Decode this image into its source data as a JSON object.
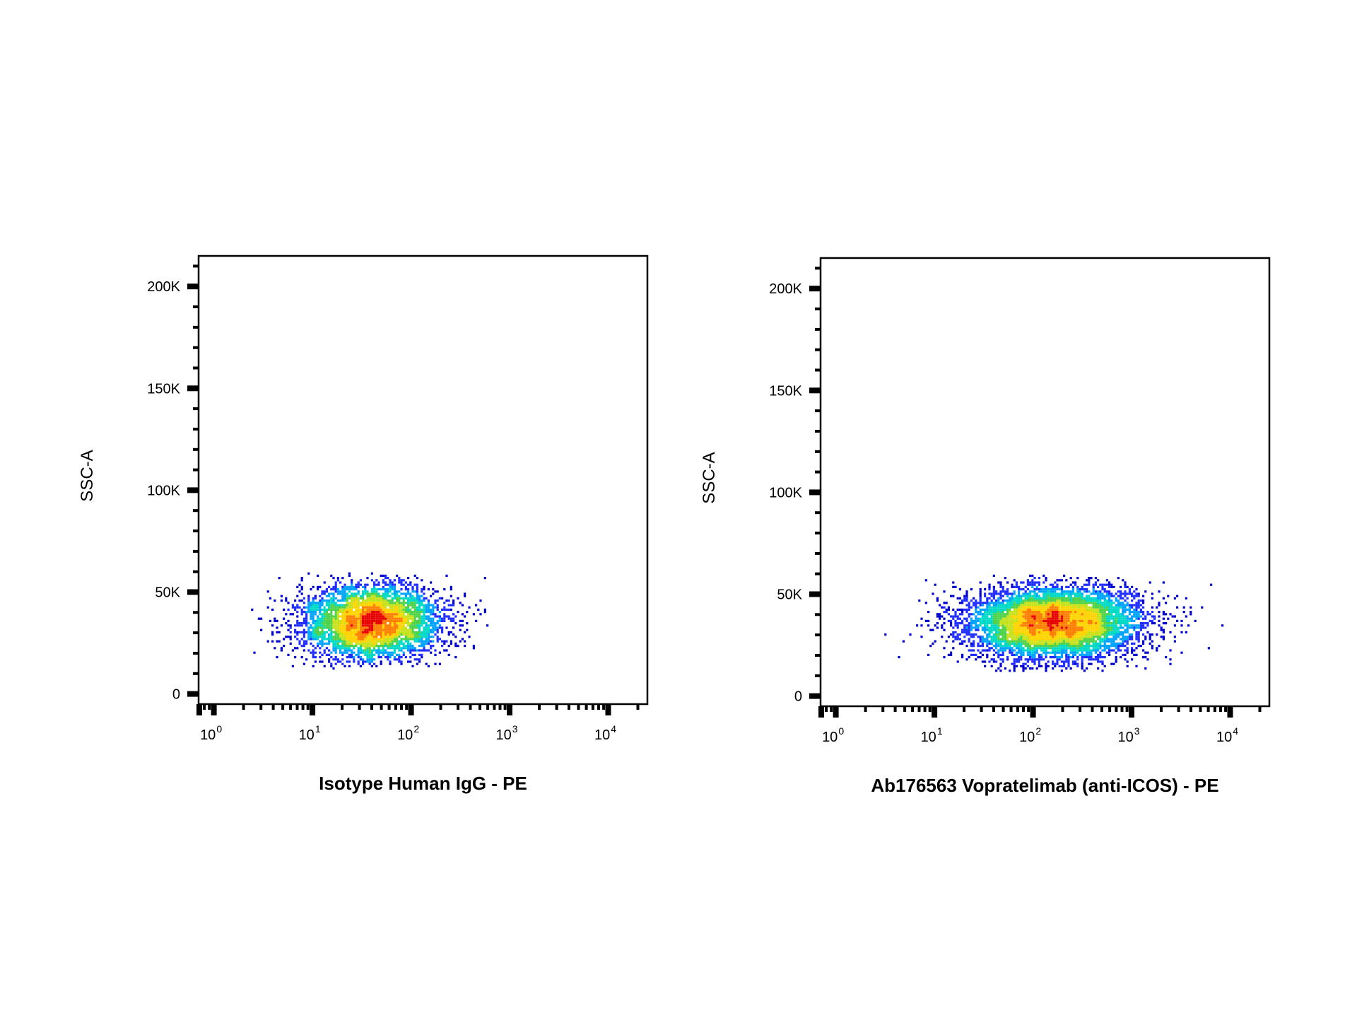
{
  "figure": {
    "background": "#ffffff"
  },
  "density_colors": [
    "#0000cc",
    "#1e2cff",
    "#00a2ff",
    "#00d9c6",
    "#4dd24a",
    "#c6e21c",
    "#ffd400",
    "#ff7e00",
    "#e60000"
  ],
  "chart_data": [
    {
      "type": "scatter",
      "subtype": "flow-cytometry-density-dot-plot",
      "xlabel": "Isotype Human IgG - PE",
      "ylabel": "SSC-A",
      "x_scale": "log",
      "xlim": [
        0.7,
        25000
      ],
      "ylim": [
        -5000,
        215000
      ],
      "x_ticks": [
        {
          "value": 1,
          "base": "10",
          "exp": "0"
        },
        {
          "value": 10,
          "base": "10",
          "exp": "1"
        },
        {
          "value": 100,
          "base": "10",
          "exp": "2"
        },
        {
          "value": 1000,
          "base": "10",
          "exp": "3"
        },
        {
          "value": 10000,
          "base": "10",
          "exp": "4"
        }
      ],
      "y_ticks": [
        {
          "value": 0,
          "label": "0"
        },
        {
          "value": 50000,
          "label": "50K"
        },
        {
          "value": 100000,
          "label": "100K"
        },
        {
          "value": 150000,
          "label": "150K"
        },
        {
          "value": 200000,
          "label": "200K"
        }
      ],
      "population": {
        "x_median": 40,
        "x_spread_decades": 0.36,
        "x_range": [
          2.5,
          700
        ],
        "y_median": 35000,
        "y_spread": 9500,
        "y_range": [
          13000,
          59000
        ],
        "density_peak": {
          "x": 55,
          "y": 36000
        },
        "approx_events": 4500
      },
      "grid": false,
      "legend": "none"
    },
    {
      "type": "scatter",
      "subtype": "flow-cytometry-density-dot-plot",
      "xlabel": "Ab176563 Vopratelimab (anti-ICOS) - PE",
      "ylabel": "SSC-A",
      "x_scale": "log",
      "xlim": [
        0.7,
        25000
      ],
      "ylim": [
        -5000,
        215000
      ],
      "x_ticks": [
        {
          "value": 1,
          "base": "10",
          "exp": "0"
        },
        {
          "value": 10,
          "base": "10",
          "exp": "1"
        },
        {
          "value": 100,
          "base": "10",
          "exp": "2"
        },
        {
          "value": 1000,
          "base": "10",
          "exp": "3"
        },
        {
          "value": 10000,
          "base": "10",
          "exp": "4"
        }
      ],
      "y_ticks": [
        {
          "value": 0,
          "label": "0"
        },
        {
          "value": 50000,
          "label": "50K"
        },
        {
          "value": 100000,
          "label": "100K"
        },
        {
          "value": 150000,
          "label": "150K"
        },
        {
          "value": 200000,
          "label": "200K"
        }
      ],
      "population": {
        "x_median": 160,
        "x_spread_decades": 0.45,
        "x_range": [
          2,
          12000
        ],
        "y_median": 36000,
        "y_spread": 9000,
        "y_range": [
          12000,
          59000
        ],
        "density_peak": {
          "x": 110,
          "y": 37000
        },
        "approx_events": 7000
      },
      "grid": false,
      "legend": "none"
    }
  ]
}
